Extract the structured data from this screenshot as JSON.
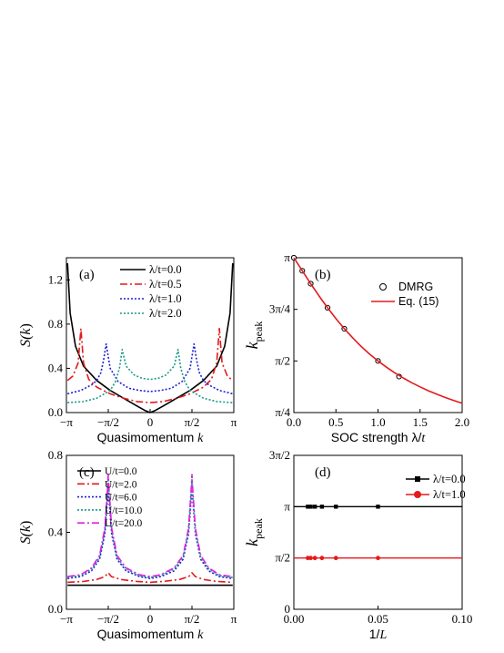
{
  "figure": {
    "panels": [
      {
        "id": "a",
        "panel_label": "(a)",
        "xlabel": "Quasimomentum",
        "xlabel_var": "k",
        "ylabel": "S(k)",
        "ylabel_pre": "S(",
        "ylabel_var": "k",
        "ylabel_post": ")"
      },
      {
        "id": "b",
        "panel_label": "(b)",
        "xlabel": "SOC strength λ/t",
        "xlabel_text": "SOC strength λ/",
        "xlabel_var": "t",
        "ylabel_main": "k",
        "ylabel_sub": "peak"
      },
      {
        "id": "c",
        "panel_label": "(c)",
        "xlabel": "Quasimomentum",
        "xlabel_var": "k",
        "ylabel": "S(k)",
        "ylabel_pre": "S(",
        "ylabel_var": "k",
        "ylabel_post": ")"
      },
      {
        "id": "d",
        "panel_label": "(d)",
        "xlabel": "1/L",
        "xlabel_text": "1/",
        "xlabel_var": "L",
        "ylabel_main": "k",
        "ylabel_sub": "peak"
      }
    ]
  },
  "chart_data": [
    {
      "id": "a",
      "type": "line",
      "xlabel": "Quasimomentum k",
      "ylabel": "S(k)",
      "xlim": [
        -3.14159,
        3.14159
      ],
      "ylim": [
        0.0,
        1.4
      ],
      "xticks": [
        "−π",
        "−π/2",
        "0",
        "π/2",
        "π"
      ],
      "yticks": [
        "0.0",
        "0.4",
        "0.8",
        "1.2"
      ],
      "legend": {
        "placement": "top-center"
      },
      "series": [
        {
          "name": "λ/t=0.0",
          "color": "#000000",
          "style": "solid",
          "x": [
            -3.1,
            -3.0,
            -2.8,
            -2.5,
            -2.0,
            -1.5,
            -1.0,
            -0.5,
            -0.2,
            0.0,
            0.2,
            0.5,
            1.0,
            1.5,
            2.0,
            2.5,
            2.8,
            3.0,
            3.1
          ],
          "y": [
            1.35,
            0.9,
            0.6,
            0.42,
            0.29,
            0.2,
            0.13,
            0.06,
            0.02,
            0.0,
            0.02,
            0.06,
            0.13,
            0.2,
            0.29,
            0.42,
            0.6,
            0.9,
            1.35
          ]
        },
        {
          "name": "λ/t=0.5",
          "color": "#e41a1c",
          "style": "dashdot",
          "x": [
            -3.1,
            -2.9,
            -2.7,
            -2.6,
            -2.5,
            -2.3,
            -2.0,
            -1.5,
            -1.0,
            -0.5,
            0.0,
            0.5,
            1.0,
            1.5,
            2.0,
            2.3,
            2.5,
            2.6,
            2.7,
            2.9,
            3.1
          ],
          "y": [
            0.29,
            0.33,
            0.45,
            0.76,
            0.45,
            0.3,
            0.23,
            0.17,
            0.13,
            0.1,
            0.09,
            0.1,
            0.13,
            0.17,
            0.23,
            0.3,
            0.45,
            0.76,
            0.45,
            0.33,
            0.29
          ]
        },
        {
          "name": "λ/t=1.0",
          "color": "#1f1fd6",
          "style": "dotted",
          "x": [
            -3.1,
            -2.6,
            -2.2,
            -2.0,
            -1.85,
            -1.75,
            -1.65,
            -1.5,
            -1.2,
            -0.8,
            -0.4,
            0.0,
            0.4,
            0.8,
            1.2,
            1.5,
            1.65,
            1.75,
            1.85,
            2.0,
            2.2,
            2.6,
            3.1
          ],
          "y": [
            0.17,
            0.2,
            0.25,
            0.29,
            0.36,
            0.47,
            0.62,
            0.4,
            0.28,
            0.22,
            0.2,
            0.19,
            0.2,
            0.22,
            0.28,
            0.4,
            0.62,
            0.47,
            0.36,
            0.29,
            0.25,
            0.2,
            0.17
          ]
        },
        {
          "name": "λ/t=2.0",
          "color": "#1a9a8a",
          "style": "dotted",
          "x": [
            -3.1,
            -2.5,
            -2.0,
            -1.5,
            -1.3,
            -1.15,
            -1.05,
            -0.9,
            -0.6,
            -0.3,
            0.0,
            0.3,
            0.6,
            0.9,
            1.05,
            1.15,
            1.3,
            1.5,
            2.0,
            2.5,
            3.1
          ],
          "y": [
            0.09,
            0.1,
            0.13,
            0.2,
            0.28,
            0.4,
            0.57,
            0.42,
            0.34,
            0.31,
            0.3,
            0.31,
            0.34,
            0.42,
            0.57,
            0.4,
            0.28,
            0.2,
            0.13,
            0.1,
            0.09
          ]
        }
      ]
    },
    {
      "id": "b",
      "type": "line",
      "xlabel": "SOC strength λ/t",
      "ylabel": "k_peak",
      "xlim": [
        0.0,
        2.0
      ],
      "ylim": [
        0.7854,
        3.14159
      ],
      "xticks": [
        "0.0",
        "0.5",
        "1.0",
        "1.5",
        "2.0"
      ],
      "xtick_values": [
        0.0,
        0.5,
        1.0,
        1.5,
        2.0
      ],
      "yticks": [
        "π/4",
        "π/2",
        "3π/4",
        "π"
      ],
      "ytick_values": [
        0.7854,
        1.5708,
        2.3562,
        3.14159
      ],
      "legend": {
        "placement": "top-right"
      },
      "series": [
        {
          "name": "DMRG",
          "marker": "open-circle",
          "color": "#000000",
          "x": [
            0.0,
            0.1,
            0.2,
            0.4,
            0.6,
            1.0,
            1.25
          ],
          "y": [
            3.1416,
            2.943,
            2.7468,
            2.3806,
            2.0608,
            1.5708,
            1.3334
          ]
        },
        {
          "name": "Eq. (15)",
          "color": "#e41a1c",
          "style": "solid",
          "x": [
            0.0,
            0.1,
            0.2,
            0.3,
            0.4,
            0.5,
            0.6,
            0.7,
            0.8,
            0.9,
            1.0,
            1.1,
            1.2,
            1.3,
            1.4,
            1.5,
            1.6,
            1.7,
            1.8,
            1.9,
            2.0
          ],
          "y": [
            3.1416,
            2.943,
            2.7468,
            2.5576,
            2.3806,
            2.2143,
            2.0608,
            1.9199,
            1.7913,
            1.6737,
            1.5708,
            1.4758,
            1.3897,
            1.3115,
            1.2405,
            1.176,
            1.1173,
            1.064,
            1.0143,
            0.9693,
            0.9273
          ]
        }
      ]
    },
    {
      "id": "c",
      "type": "line",
      "xlabel": "Quasimomentum k",
      "ylabel": "S(k)",
      "xlim": [
        -3.14159,
        3.14159
      ],
      "ylim": [
        0.0,
        0.8
      ],
      "xticks": [
        "−π",
        "−π/2",
        "0",
        "π/2",
        "π"
      ],
      "yticks": [
        "0.0",
        "0.4",
        "0.8"
      ],
      "legend": {
        "placement": "top-left"
      },
      "series": [
        {
          "name": "U/t=0.0",
          "color": "#000000",
          "style": "solid",
          "x": [
            -3.1,
            3.1
          ],
          "y": [
            0.125,
            0.125
          ]
        },
        {
          "name": "U/t=2.0",
          "color": "#e41a1c",
          "style": "dashdot",
          "x": [
            -3.1,
            -2.5,
            -2.0,
            -1.7,
            -1.57,
            -1.45,
            -1.1,
            -0.5,
            0.0,
            0.5,
            1.1,
            1.45,
            1.57,
            1.7,
            2.0,
            2.5,
            3.1
          ],
          "y": [
            0.14,
            0.145,
            0.155,
            0.17,
            0.19,
            0.17,
            0.155,
            0.145,
            0.14,
            0.145,
            0.155,
            0.17,
            0.19,
            0.17,
            0.155,
            0.145,
            0.14
          ]
        },
        {
          "name": "U/t=6.0",
          "color": "#1f1fd6",
          "style": "dotted",
          "x": [
            -3.1,
            -2.6,
            -2.2,
            -1.9,
            -1.7,
            -1.6,
            -1.57,
            -1.54,
            -1.44,
            -1.24,
            -0.9,
            -0.4,
            0.0,
            0.4,
            0.9,
            1.24,
            1.44,
            1.54,
            1.57,
            1.6,
            1.7,
            1.9,
            2.2,
            2.6,
            3.1
          ],
          "y": [
            0.16,
            0.17,
            0.2,
            0.26,
            0.39,
            0.57,
            0.65,
            0.57,
            0.39,
            0.26,
            0.2,
            0.17,
            0.16,
            0.17,
            0.2,
            0.26,
            0.39,
            0.57,
            0.65,
            0.57,
            0.39,
            0.26,
            0.2,
            0.17,
            0.16
          ]
        },
        {
          "name": "U/t=10.0",
          "color": "#1a9a8a",
          "style": "dotted",
          "x": [
            -3.1,
            -2.6,
            -2.2,
            -1.9,
            -1.7,
            -1.6,
            -1.57,
            -1.54,
            -1.44,
            -1.24,
            -0.9,
            -0.4,
            0.0,
            0.4,
            0.9,
            1.24,
            1.44,
            1.54,
            1.57,
            1.6,
            1.7,
            1.9,
            2.2,
            2.6,
            3.1
          ],
          "y": [
            0.165,
            0.175,
            0.21,
            0.27,
            0.41,
            0.6,
            0.68,
            0.6,
            0.41,
            0.27,
            0.21,
            0.175,
            0.165,
            0.175,
            0.21,
            0.27,
            0.41,
            0.6,
            0.68,
            0.6,
            0.41,
            0.27,
            0.21,
            0.175,
            0.165
          ]
        },
        {
          "name": "U/t=20.0",
          "color": "#e020e0",
          "style": "dashdot",
          "x": [
            -3.1,
            -2.6,
            -2.2,
            -1.9,
            -1.7,
            -1.6,
            -1.57,
            -1.54,
            -1.44,
            -1.24,
            -0.9,
            -0.4,
            0.0,
            0.4,
            0.9,
            1.24,
            1.44,
            1.54,
            1.57,
            1.6,
            1.7,
            1.9,
            2.2,
            2.6,
            3.1
          ],
          "y": [
            0.17,
            0.18,
            0.215,
            0.28,
            0.42,
            0.62,
            0.7,
            0.62,
            0.42,
            0.28,
            0.215,
            0.18,
            0.17,
            0.18,
            0.215,
            0.28,
            0.42,
            0.62,
            0.7,
            0.62,
            0.42,
            0.28,
            0.215,
            0.18,
            0.17
          ]
        }
      ]
    },
    {
      "id": "d",
      "type": "line",
      "xlabel": "1/L",
      "ylabel": "k_peak",
      "xlim": [
        0.0,
        0.1
      ],
      "ylim": [
        0.0,
        4.71239
      ],
      "xticks": [
        "0.00",
        "0.05",
        "0.10"
      ],
      "xtick_values": [
        0.0,
        0.05,
        0.1
      ],
      "yticks": [
        "0",
        "π/2",
        "π",
        "3π/2"
      ],
      "ytick_values": [
        0.0,
        1.5708,
        3.14159,
        4.71239
      ],
      "legend": {
        "placement": "top-right"
      },
      "series": [
        {
          "name": "λ/t=0.0",
          "marker": "filled-square",
          "color": "#000000",
          "x": [
            0.0,
            0.0083,
            0.01,
            0.0125,
            0.0167,
            0.025,
            0.05,
            0.1
          ],
          "y": [
            3.1416,
            3.1416,
            3.1416,
            3.1416,
            3.1416,
            3.1416,
            3.1416,
            3.1416
          ]
        },
        {
          "name": "λ/t=1.0",
          "marker": "filled-circle",
          "color": "#e41a1c",
          "x": [
            0.0,
            0.0083,
            0.01,
            0.0125,
            0.0167,
            0.025,
            0.05,
            0.1
          ],
          "y": [
            1.5708,
            1.5708,
            1.5708,
            1.5708,
            1.5708,
            1.5708,
            1.5708,
            1.5708
          ]
        }
      ]
    }
  ]
}
